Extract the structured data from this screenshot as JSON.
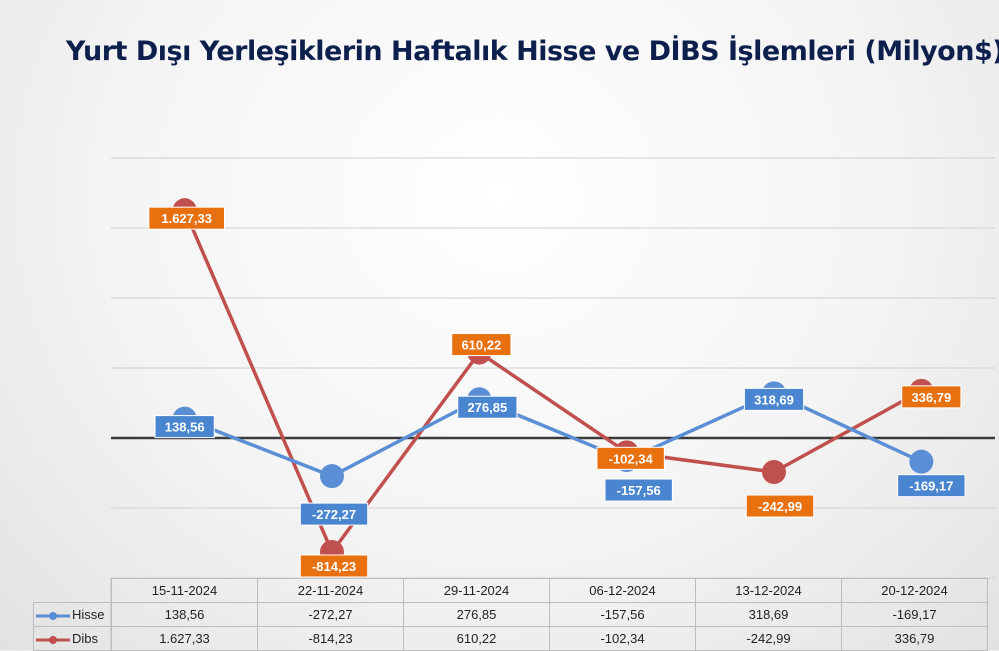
{
  "chart_data": {
    "type": "line",
    "title": "Yurt Dışı Yerleşiklerin Haftalık Hisse ve DİBS İşlemleri (Milyon$)",
    "categories": [
      "15-11-2024",
      "22-11-2024",
      "29-11-2024",
      "06-12-2024",
      "13-12-2024",
      "20-12-2024"
    ],
    "series": [
      {
        "name": "Hisse",
        "color": "#5a8fd6",
        "values": [
          138.56,
          -272.27,
          276.85,
          -157.56,
          318.69,
          -169.17
        ],
        "labels": [
          "138,56",
          "-272,27",
          "276,85",
          "-157,56",
          "318,69",
          "-169,17"
        ]
      },
      {
        "name": "Dibs",
        "color": "#c0504d",
        "values": [
          1627.33,
          -814.23,
          610.22,
          -102.34,
          -242.99,
          336.79
        ],
        "labels": [
          "1.627,33",
          "-814,23",
          "610,22",
          "-102,34",
          "-242,99",
          "336,79"
        ]
      }
    ],
    "ylim": [
      -1000,
      2000
    ],
    "grid": true,
    "legend": "data-table",
    "data_label_colors": {
      "Hisse": "#4a86d0",
      "Dibs": "#e8700f"
    }
  }
}
